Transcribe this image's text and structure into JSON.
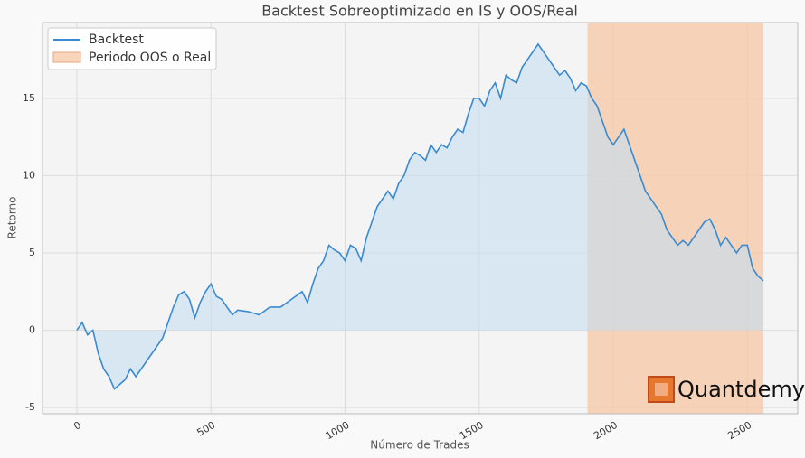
{
  "chart_data": {
    "type": "line",
    "title": "Backtest Sobreoptimizado en IS y OOS/Real",
    "xlabel": "Número de Trades",
    "ylabel": "Retorno",
    "watermark": "Quantdemy",
    "x": [
      0,
      20,
      40,
      60,
      80,
      100,
      120,
      140,
      160,
      180,
      200,
      220,
      240,
      260,
      280,
      300,
      320,
      340,
      360,
      380,
      400,
      420,
      440,
      460,
      480,
      500,
      520,
      540,
      560,
      580,
      600,
      640,
      680,
      720,
      760,
      800,
      840,
      860,
      880,
      900,
      920,
      940,
      960,
      980,
      1000,
      1020,
      1040,
      1060,
      1080,
      1100,
      1120,
      1140,
      1160,
      1180,
      1200,
      1220,
      1240,
      1260,
      1280,
      1300,
      1320,
      1340,
      1360,
      1380,
      1400,
      1420,
      1440,
      1460,
      1480,
      1500,
      1520,
      1540,
      1560,
      1580,
      1600,
      1620,
      1640,
      1660,
      1680,
      1700,
      1720,
      1740,
      1760,
      1780,
      1800,
      1820,
      1840,
      1860,
      1880,
      1900,
      1920,
      1940,
      1960,
      1980,
      2000,
      2020,
      2040,
      2060,
      2080,
      2100,
      2120,
      2140,
      2160,
      2180,
      2200,
      2220,
      2240,
      2260,
      2280,
      2300,
      2320,
      2340,
      2360,
      2380,
      2400,
      2420,
      2440,
      2460,
      2480,
      2500,
      2520,
      2540,
      2560
    ],
    "series": [
      {
        "name": "Backtest",
        "color": "#3a8ad0",
        "values": [
          0,
          0.5,
          -0.3,
          0,
          -1.5,
          -2.5,
          -3,
          -3.8,
          -3.5,
          -3.2,
          -2.5,
          -3,
          -2.5,
          -2,
          -1.5,
          -1,
          -0.5,
          0.5,
          1.5,
          2.3,
          2.5,
          2,
          0.8,
          1.8,
          2.5,
          3,
          2.2,
          2,
          1.5,
          1,
          1.3,
          1.2,
          1,
          1.5,
          1.5,
          2,
          2.5,
          1.8,
          3,
          4,
          4.5,
          5.5,
          5.2,
          5,
          4.5,
          5.5,
          5.3,
          4.5,
          6,
          7,
          8,
          8.5,
          9,
          8.5,
          9.5,
          10,
          11,
          11.5,
          11.3,
          11,
          12,
          11.5,
          12,
          11.8,
          12.5,
          13,
          12.8,
          14,
          15,
          15,
          14.5,
          15.5,
          16,
          15,
          16.5,
          16.2,
          16,
          17,
          17.5,
          18,
          18.5,
          18,
          17.5,
          17,
          16.5,
          16.8,
          16.3,
          15.5,
          16,
          15.8,
          15,
          14.5,
          13.5,
          12.5,
          12,
          12.5,
          13,
          12,
          11,
          10,
          9,
          8.5,
          8,
          7.5,
          6.5,
          6,
          5.5,
          5.8,
          5.5,
          6,
          6.5,
          7,
          7.2,
          6.5,
          5.5,
          6,
          5.5,
          5,
          5.5,
          5.5,
          4,
          3.5,
          3.2
        ]
      }
    ],
    "span": {
      "name": "Periodo OOS o Real",
      "x": [
        1904,
        2560
      ],
      "color": "#f6c7a4"
    },
    "fill_color": "#c5ddf0",
    "xlim": [
      -128,
      2688
    ],
    "ylim": [
      -5.4,
      19.9
    ],
    "xticks": [
      0,
      500,
      1000,
      1500,
      2000,
      2500
    ],
    "yticks": [
      -5,
      0,
      5,
      10,
      15
    ],
    "grid": true
  }
}
